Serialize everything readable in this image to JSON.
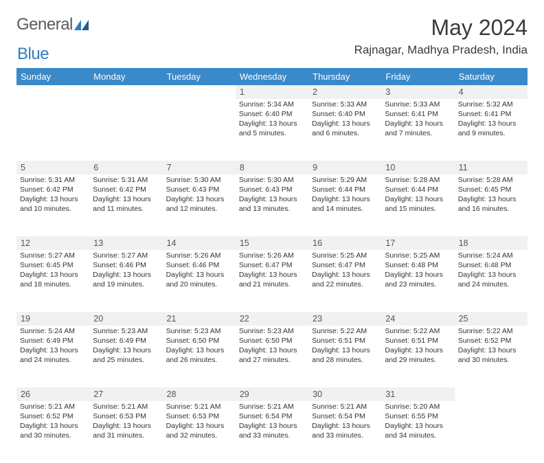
{
  "logo": {
    "brand_a": "General",
    "brand_b": "Blue"
  },
  "title": "May 2024",
  "location": "Rajnagar, Madhya Pradesh, India",
  "colors": {
    "header_bg": "#3a89c9",
    "header_text": "#ffffff",
    "daynum_bg": "#eff1f2",
    "text": "#333333",
    "rule": "#888888",
    "logo_gray": "#5a5a5a",
    "logo_blue": "#2f7cc0"
  },
  "dow": [
    "Sunday",
    "Monday",
    "Tuesday",
    "Wednesday",
    "Thursday",
    "Friday",
    "Saturday"
  ],
  "weeks": [
    [
      {
        "n": "",
        "sr": "",
        "ss": "",
        "dl": ""
      },
      {
        "n": "",
        "sr": "",
        "ss": "",
        "dl": ""
      },
      {
        "n": "",
        "sr": "",
        "ss": "",
        "dl": ""
      },
      {
        "n": "1",
        "sr": "Sunrise: 5:34 AM",
        "ss": "Sunset: 6:40 PM",
        "dl": "Daylight: 13 hours and 5 minutes."
      },
      {
        "n": "2",
        "sr": "Sunrise: 5:33 AM",
        "ss": "Sunset: 6:40 PM",
        "dl": "Daylight: 13 hours and 6 minutes."
      },
      {
        "n": "3",
        "sr": "Sunrise: 5:33 AM",
        "ss": "Sunset: 6:41 PM",
        "dl": "Daylight: 13 hours and 7 minutes."
      },
      {
        "n": "4",
        "sr": "Sunrise: 5:32 AM",
        "ss": "Sunset: 6:41 PM",
        "dl": "Daylight: 13 hours and 9 minutes."
      }
    ],
    [
      {
        "n": "5",
        "sr": "Sunrise: 5:31 AM",
        "ss": "Sunset: 6:42 PM",
        "dl": "Daylight: 13 hours and 10 minutes."
      },
      {
        "n": "6",
        "sr": "Sunrise: 5:31 AM",
        "ss": "Sunset: 6:42 PM",
        "dl": "Daylight: 13 hours and 11 minutes."
      },
      {
        "n": "7",
        "sr": "Sunrise: 5:30 AM",
        "ss": "Sunset: 6:43 PM",
        "dl": "Daylight: 13 hours and 12 minutes."
      },
      {
        "n": "8",
        "sr": "Sunrise: 5:30 AM",
        "ss": "Sunset: 6:43 PM",
        "dl": "Daylight: 13 hours and 13 minutes."
      },
      {
        "n": "9",
        "sr": "Sunrise: 5:29 AM",
        "ss": "Sunset: 6:44 PM",
        "dl": "Daylight: 13 hours and 14 minutes."
      },
      {
        "n": "10",
        "sr": "Sunrise: 5:28 AM",
        "ss": "Sunset: 6:44 PM",
        "dl": "Daylight: 13 hours and 15 minutes."
      },
      {
        "n": "11",
        "sr": "Sunrise: 5:28 AM",
        "ss": "Sunset: 6:45 PM",
        "dl": "Daylight: 13 hours and 16 minutes."
      }
    ],
    [
      {
        "n": "12",
        "sr": "Sunrise: 5:27 AM",
        "ss": "Sunset: 6:45 PM",
        "dl": "Daylight: 13 hours and 18 minutes."
      },
      {
        "n": "13",
        "sr": "Sunrise: 5:27 AM",
        "ss": "Sunset: 6:46 PM",
        "dl": "Daylight: 13 hours and 19 minutes."
      },
      {
        "n": "14",
        "sr": "Sunrise: 5:26 AM",
        "ss": "Sunset: 6:46 PM",
        "dl": "Daylight: 13 hours and 20 minutes."
      },
      {
        "n": "15",
        "sr": "Sunrise: 5:26 AM",
        "ss": "Sunset: 6:47 PM",
        "dl": "Daylight: 13 hours and 21 minutes."
      },
      {
        "n": "16",
        "sr": "Sunrise: 5:25 AM",
        "ss": "Sunset: 6:47 PM",
        "dl": "Daylight: 13 hours and 22 minutes."
      },
      {
        "n": "17",
        "sr": "Sunrise: 5:25 AM",
        "ss": "Sunset: 6:48 PM",
        "dl": "Daylight: 13 hours and 23 minutes."
      },
      {
        "n": "18",
        "sr": "Sunrise: 5:24 AM",
        "ss": "Sunset: 6:48 PM",
        "dl": "Daylight: 13 hours and 24 minutes."
      }
    ],
    [
      {
        "n": "19",
        "sr": "Sunrise: 5:24 AM",
        "ss": "Sunset: 6:49 PM",
        "dl": "Daylight: 13 hours and 24 minutes."
      },
      {
        "n": "20",
        "sr": "Sunrise: 5:23 AM",
        "ss": "Sunset: 6:49 PM",
        "dl": "Daylight: 13 hours and 25 minutes."
      },
      {
        "n": "21",
        "sr": "Sunrise: 5:23 AM",
        "ss": "Sunset: 6:50 PM",
        "dl": "Daylight: 13 hours and 26 minutes."
      },
      {
        "n": "22",
        "sr": "Sunrise: 5:23 AM",
        "ss": "Sunset: 6:50 PM",
        "dl": "Daylight: 13 hours and 27 minutes."
      },
      {
        "n": "23",
        "sr": "Sunrise: 5:22 AM",
        "ss": "Sunset: 6:51 PM",
        "dl": "Daylight: 13 hours and 28 minutes."
      },
      {
        "n": "24",
        "sr": "Sunrise: 5:22 AM",
        "ss": "Sunset: 6:51 PM",
        "dl": "Daylight: 13 hours and 29 minutes."
      },
      {
        "n": "25",
        "sr": "Sunrise: 5:22 AM",
        "ss": "Sunset: 6:52 PM",
        "dl": "Daylight: 13 hours and 30 minutes."
      }
    ],
    [
      {
        "n": "26",
        "sr": "Sunrise: 5:21 AM",
        "ss": "Sunset: 6:52 PM",
        "dl": "Daylight: 13 hours and 30 minutes."
      },
      {
        "n": "27",
        "sr": "Sunrise: 5:21 AM",
        "ss": "Sunset: 6:53 PM",
        "dl": "Daylight: 13 hours and 31 minutes."
      },
      {
        "n": "28",
        "sr": "Sunrise: 5:21 AM",
        "ss": "Sunset: 6:53 PM",
        "dl": "Daylight: 13 hours and 32 minutes."
      },
      {
        "n": "29",
        "sr": "Sunrise: 5:21 AM",
        "ss": "Sunset: 6:54 PM",
        "dl": "Daylight: 13 hours and 33 minutes."
      },
      {
        "n": "30",
        "sr": "Sunrise: 5:21 AM",
        "ss": "Sunset: 6:54 PM",
        "dl": "Daylight: 13 hours and 33 minutes."
      },
      {
        "n": "31",
        "sr": "Sunrise: 5:20 AM",
        "ss": "Sunset: 6:55 PM",
        "dl": "Daylight: 13 hours and 34 minutes."
      },
      {
        "n": "",
        "sr": "",
        "ss": "",
        "dl": ""
      }
    ]
  ]
}
